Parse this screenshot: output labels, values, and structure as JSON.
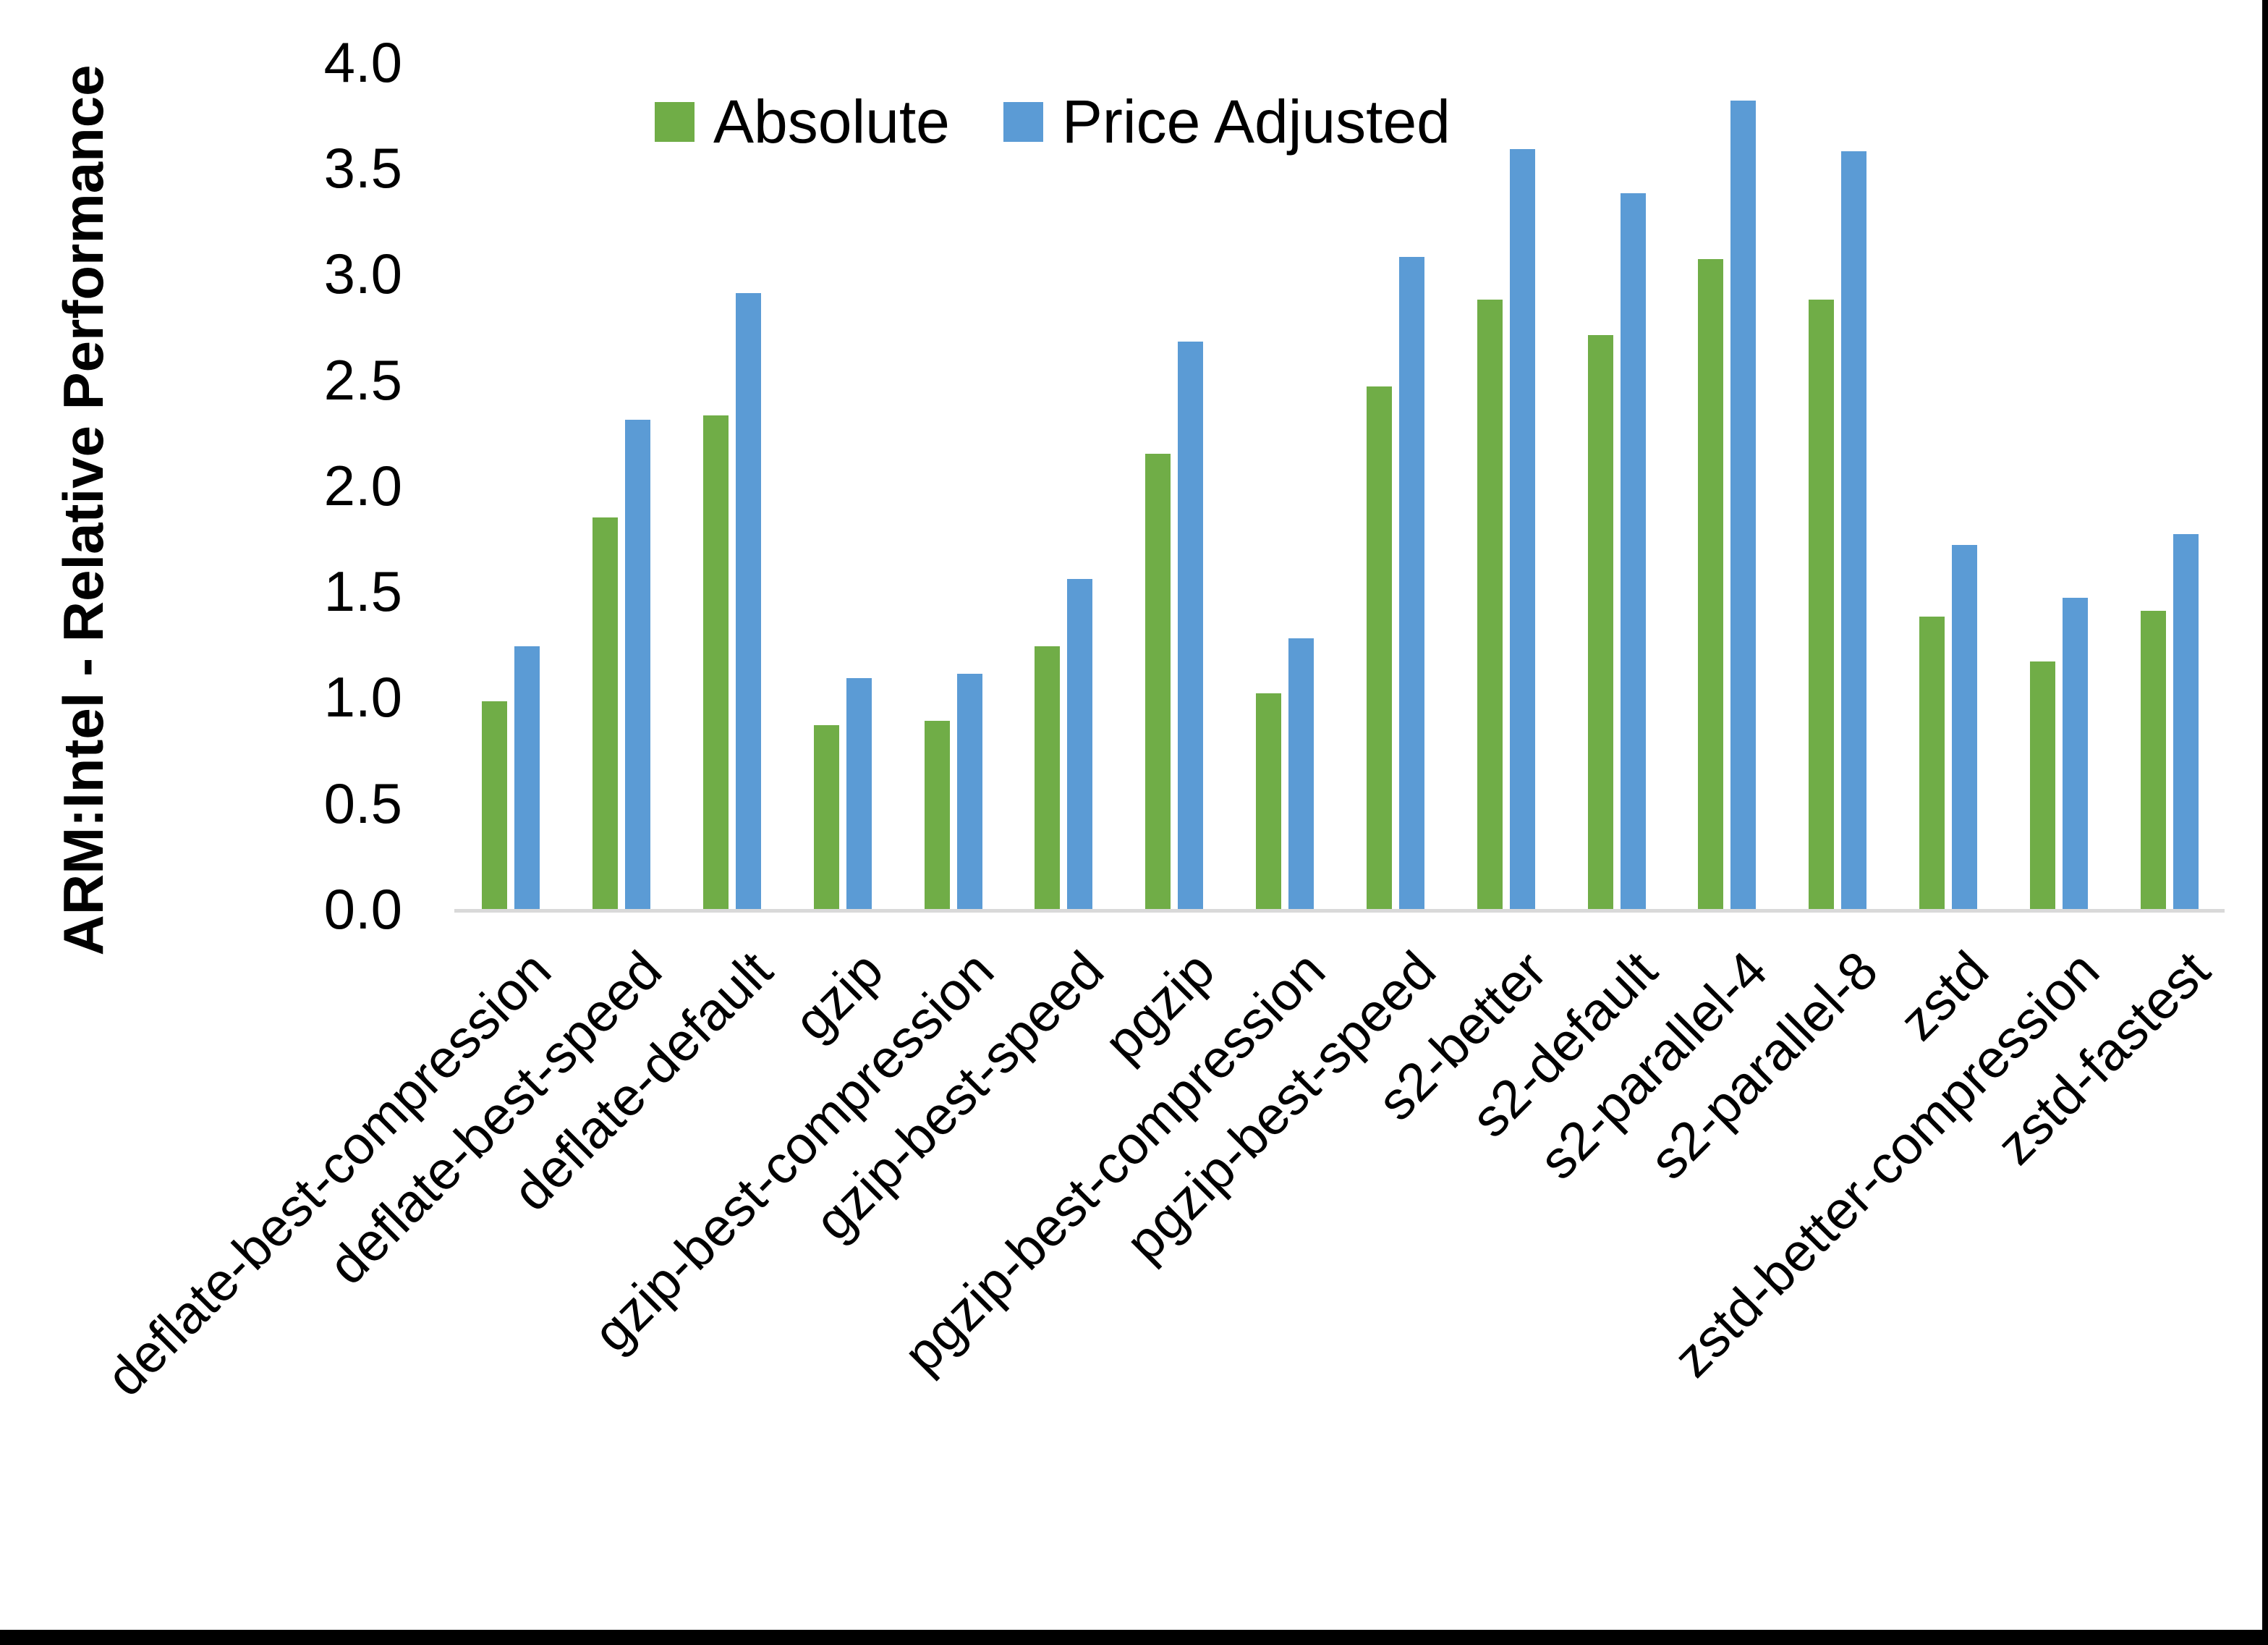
{
  "figure": {
    "background": "#ffffff",
    "frame_border_color": "#000000",
    "axis_line_color": "#D9D9D9",
    "text_color": "#000000"
  },
  "chart_data": {
    "type": "bar",
    "title": "",
    "xlabel": "",
    "ylabel": "ARM:Intel - Relative Performance",
    "ylim": [
      0.0,
      4.0
    ],
    "ytick_step": 0.5,
    "ytick_labels": [
      "0.0",
      "0.5",
      "1.0",
      "1.5",
      "2.0",
      "2.5",
      "3.0",
      "3.5",
      "4.0"
    ],
    "grid": false,
    "legend_position": "top-center",
    "categories": [
      "deflate-best-compression",
      "deflate-best-speed",
      "deflate-default",
      "gzip",
      "gzip-best-compression",
      "gzip-best-speed",
      "pgzip",
      "pgzip-best-compression",
      "pgzip-best-speed",
      "s2-better",
      "s2-default",
      "s2-parallel-4",
      "s2-parallel-8",
      "zstd",
      "zstd-better-compression",
      "zstd-fastest"
    ],
    "series": [
      {
        "name": "Absolute",
        "color": "#70AD47",
        "values": [
          0.98,
          1.85,
          2.33,
          0.87,
          0.89,
          1.24,
          2.15,
          1.02,
          2.47,
          2.88,
          2.71,
          3.07,
          2.88,
          1.38,
          1.17,
          1.41
        ]
      },
      {
        "name": "Price Adjusted",
        "color": "#5B9BD5",
        "values": [
          1.24,
          2.31,
          2.91,
          1.09,
          1.11,
          1.56,
          2.68,
          1.28,
          3.08,
          3.59,
          3.38,
          3.82,
          3.58,
          1.72,
          1.47,
          1.77
        ]
      }
    ]
  }
}
